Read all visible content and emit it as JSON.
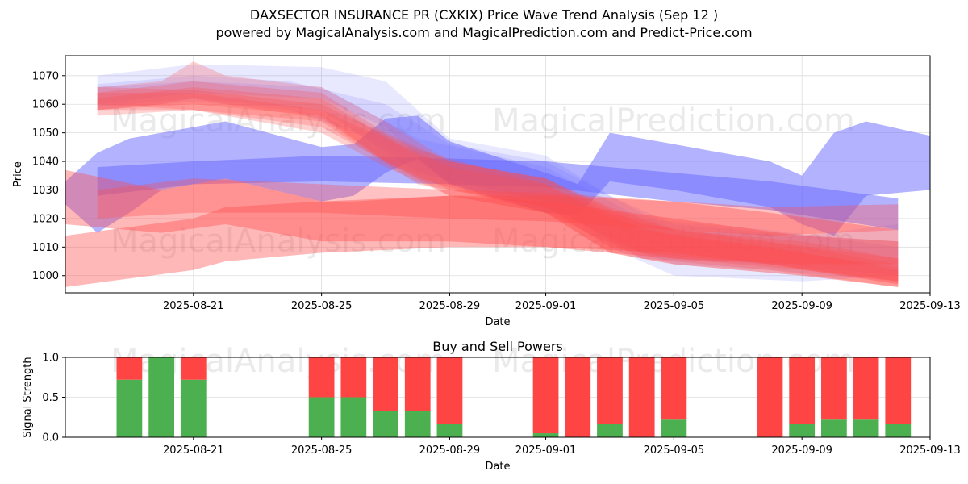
{
  "header": {
    "title_line1": "DAXSECTOR INSURANCE PR (CXKIX) Price Wave Trend Analysis (Sep 12 )",
    "title_line2": "powered by MagicalAnalysis.com and MagicalPrediction.com and Predict-Price.com"
  },
  "watermarks": [
    "MagicalAnalysis.com",
    "MagicalPrediction.com"
  ],
  "colors": {
    "blue_band": "#6666ff",
    "red_band": "#ff4d4d",
    "buy": "#4caf50",
    "sell": "#ff4444",
    "grid": "#dddddd"
  },
  "chart_data": [
    {
      "type": "area",
      "title": "",
      "xlabel": "Date",
      "ylabel": "Price",
      "ylim": [
        994,
        1077
      ],
      "x_range": [
        "2025-08-17",
        "2025-09-13"
      ],
      "x_ticks": [
        "2025-08-21",
        "2025-08-25",
        "2025-08-29",
        "2025-09-01",
        "2025-09-05",
        "2025-09-09",
        "2025-09-13"
      ],
      "y_ticks": [
        1000,
        1010,
        1020,
        1030,
        1040,
        1050,
        1060,
        1070
      ],
      "grid": true,
      "bands": [
        {
          "color": "blue",
          "opacity": 0.5,
          "points": [
            [
              "2025-08-17",
              1033,
              1025
            ],
            [
              "2025-08-18",
              1043,
              1015
            ],
            [
              "2025-08-19",
              1048,
              1022
            ],
            [
              "2025-08-20",
              1050,
              1030
            ],
            [
              "2025-08-22",
              1054,
              1034
            ],
            [
              "2025-08-25",
              1045,
              1026
            ],
            [
              "2025-08-26",
              1046,
              1028
            ],
            [
              "2025-08-27",
              1055,
              1036
            ],
            [
              "2025-08-28",
              1056,
              1041
            ],
            [
              "2025-08-29",
              1047,
              1032
            ],
            [
              "2025-09-01",
              1036,
              1022
            ],
            [
              "2025-09-02",
              1032,
              1021
            ],
            [
              "2025-09-03",
              1050,
              1033
            ],
            [
              "2025-09-05",
              1046,
              1030
            ],
            [
              "2025-09-08",
              1040,
              1024
            ],
            [
              "2025-09-09",
              1035,
              1018
            ],
            [
              "2025-09-10",
              1050,
              1014
            ],
            [
              "2025-09-11",
              1054,
              1028
            ],
            [
              "2025-09-13",
              1049,
              1030
            ]
          ]
        },
        {
          "color": "blue",
          "opacity": 0.5,
          "points": [
            [
              "2025-08-18",
              1038,
              1028
            ],
            [
              "2025-08-21",
              1040,
              1032
            ],
            [
              "2025-08-25",
              1042,
              1033
            ],
            [
              "2025-08-29",
              1041,
              1032
            ],
            [
              "2025-09-01",
              1040,
              1031
            ],
            [
              "2025-09-05",
              1036,
              1026
            ],
            [
              "2025-09-08",
              1033,
              1023
            ],
            [
              "2025-09-12",
              1027,
              1016
            ]
          ]
        },
        {
          "color": "blue",
          "opacity": 0.15,
          "points": [
            [
              "2025-08-18",
              1070,
              1060
            ],
            [
              "2025-08-21",
              1074,
              1064
            ],
            [
              "2025-08-25",
              1073,
              1062
            ],
            [
              "2025-08-27",
              1068,
              1052
            ],
            [
              "2025-08-29",
              1048,
              1032
            ],
            [
              "2025-09-01",
              1042,
              1024
            ],
            [
              "2025-09-03",
              1028,
              1010
            ],
            [
              "2025-09-05",
              1016,
              1000
            ],
            [
              "2025-09-09",
              1014,
              998
            ],
            [
              "2025-09-12",
              1018,
              1000
            ]
          ]
        },
        {
          "color": "blue",
          "opacity": 0.15,
          "points": [
            [
              "2025-08-18",
              1067,
              1058
            ],
            [
              "2025-08-21",
              1070,
              1061
            ],
            [
              "2025-08-24",
              1068,
              1058
            ],
            [
              "2025-08-27",
              1060,
              1046
            ],
            [
              "2025-08-29",
              1046,
              1032
            ],
            [
              "2025-09-01",
              1040,
              1026
            ],
            [
              "2025-09-03",
              1028,
              1012
            ],
            [
              "2025-09-05",
              1018,
              1004
            ],
            [
              "2025-09-08",
              1015,
              1002
            ],
            [
              "2025-09-12",
              1012,
              998
            ]
          ]
        },
        {
          "color": "blue",
          "opacity": 0.15,
          "points": [
            [
              "2025-08-18",
              1066,
              1059
            ],
            [
              "2025-08-21",
              1068,
              1062
            ],
            [
              "2025-08-25",
              1066,
              1058
            ],
            [
              "2025-08-28",
              1048,
              1036
            ],
            [
              "2025-09-01",
              1038,
              1026
            ],
            [
              "2025-09-04",
              1020,
              1006
            ],
            [
              "2025-09-08",
              1016,
              1004
            ],
            [
              "2025-09-12",
              1010,
              1000
            ]
          ]
        },
        {
          "color": "red",
          "opacity": 0.4,
          "points": [
            [
              "2025-08-17",
              1014,
              996
            ],
            [
              "2025-08-21",
              1020,
              1002
            ],
            [
              "2025-08-22",
              1024,
              1005
            ],
            [
              "2025-08-25",
              1026,
              1008
            ],
            [
              "2025-08-29",
              1028,
              1010
            ],
            [
              "2025-09-01",
              1028,
              1010
            ],
            [
              "2025-09-05",
              1026,
              1008
            ],
            [
              "2025-09-08",
              1022,
              1004
            ],
            [
              "2025-09-12",
              1016,
              997
            ]
          ]
        },
        {
          "color": "red",
          "opacity": 0.4,
          "points": [
            [
              "2025-08-17",
              1037,
              1018
            ],
            [
              "2025-08-20",
              1030,
              1015
            ],
            [
              "2025-08-22",
              1034,
              1018
            ],
            [
              "2025-08-25",
              1026,
              1012
            ],
            [
              "2025-08-26",
              1026,
              1012
            ],
            [
              "2025-08-29",
              1028,
              1012
            ],
            [
              "2025-09-01",
              1026,
              1010
            ],
            [
              "2025-09-05",
              1020,
              1006
            ],
            [
              "2025-09-09",
              1014,
              1004
            ],
            [
              "2025-09-12",
              1012,
              1004
            ]
          ]
        },
        {
          "color": "red",
          "opacity": 0.35,
          "points": [
            [
              "2025-08-18",
              1030,
              1020
            ],
            [
              "2025-08-21",
              1034,
              1022
            ],
            [
              "2025-08-25",
              1032,
              1022
            ],
            [
              "2025-08-29",
              1030,
              1020
            ],
            [
              "2025-09-01",
              1029,
              1019
            ],
            [
              "2025-09-05",
              1026,
              1016
            ],
            [
              "2025-09-08",
              1024,
              1014
            ],
            [
              "2025-09-12",
              1025,
              1016
            ]
          ]
        },
        {
          "color": "red",
          "opacity": 0.25,
          "points": [
            [
              "2025-08-18",
              1066,
              1058
            ],
            [
              "2025-08-20",
              1068,
              1060
            ],
            [
              "2025-08-21",
              1075,
              1062
            ],
            [
              "2025-08-22",
              1070,
              1060
            ],
            [
              "2025-08-25",
              1066,
              1055
            ],
            [
              "2025-08-27",
              1054,
              1040
            ],
            [
              "2025-08-29",
              1040,
              1028
            ],
            [
              "2025-09-01",
              1034,
              1022
            ],
            [
              "2025-09-03",
              1022,
              1008
            ],
            [
              "2025-09-05",
              1016,
              1004
            ],
            [
              "2025-09-09",
              1012,
              1000
            ],
            [
              "2025-09-12",
              1006,
              996
            ]
          ]
        },
        {
          "color": "red",
          "opacity": 0.25,
          "points": [
            [
              "2025-08-18",
              1064,
              1058
            ],
            [
              "2025-08-21",
              1068,
              1060
            ],
            [
              "2025-08-25",
              1064,
              1056
            ],
            [
              "2025-08-27",
              1050,
              1040
            ],
            [
              "2025-08-29",
              1040,
              1030
            ],
            [
              "2025-09-01",
              1034,
              1024
            ],
            [
              "2025-09-03",
              1024,
              1010
            ],
            [
              "2025-09-05",
              1016,
              1006
            ],
            [
              "2025-09-09",
              1010,
              1002
            ],
            [
              "2025-09-12",
              1004,
              998
            ]
          ]
        },
        {
          "color": "red",
          "opacity": 0.25,
          "points": [
            [
              "2025-08-18",
              1062,
              1056
            ],
            [
              "2025-08-21",
              1066,
              1058
            ],
            [
              "2025-08-25",
              1062,
              1054
            ],
            [
              "2025-08-28",
              1042,
              1032
            ],
            [
              "2025-09-01",
              1034,
              1024
            ],
            [
              "2025-09-04",
              1018,
              1008
            ],
            [
              "2025-09-08",
              1012,
              1004
            ],
            [
              "2025-09-12",
              1006,
              998
            ]
          ]
        },
        {
          "color": "red",
          "opacity": 0.25,
          "points": [
            [
              "2025-08-18",
              1066,
              1060
            ],
            [
              "2025-08-21",
              1065,
              1058
            ],
            [
              "2025-08-25",
              1060,
              1052
            ],
            [
              "2025-08-28",
              1044,
              1034
            ],
            [
              "2025-09-01",
              1032,
              1022
            ],
            [
              "2025-09-03",
              1020,
              1008
            ],
            [
              "2025-09-05",
              1014,
              1004
            ],
            [
              "2025-09-09",
              1008,
              1000
            ],
            [
              "2025-09-12",
              1003,
              996
            ]
          ]
        },
        {
          "color": "red",
          "opacity": 0.25,
          "points": [
            [
              "2025-08-18",
              1064,
              1058
            ],
            [
              "2025-08-21",
              1064,
              1058
            ],
            [
              "2025-08-25",
              1058,
              1050
            ],
            [
              "2025-08-27",
              1048,
              1038
            ],
            [
              "2025-08-29",
              1038,
              1028
            ],
            [
              "2025-09-01",
              1032,
              1022
            ],
            [
              "2025-09-04",
              1016,
              1006
            ],
            [
              "2025-09-08",
              1010,
              1002
            ],
            [
              "2025-09-12",
              1002,
              996
            ]
          ]
        }
      ]
    },
    {
      "type": "bar",
      "title": "Buy and Sell Powers",
      "xlabel": "Date",
      "ylabel": "Signal Strength",
      "ylim": [
        0,
        1.0
      ],
      "x_range": [
        "2025-08-17",
        "2025-09-13"
      ],
      "x_ticks": [
        "2025-08-21",
        "2025-08-25",
        "2025-08-29",
        "2025-09-01",
        "2025-09-05",
        "2025-09-09",
        "2025-09-13"
      ],
      "y_ticks": [
        "0.0",
        "0.5",
        "1.0"
      ],
      "grid": true,
      "series": [
        {
          "name": "Buy",
          "color": "green"
        },
        {
          "name": "Sell",
          "color": "red"
        }
      ],
      "dates": [
        "2025-08-19",
        "2025-08-20",
        "2025-08-21",
        "2025-08-25",
        "2025-08-26",
        "2025-08-27",
        "2025-08-28",
        "2025-08-29",
        "2025-09-01",
        "2025-09-02",
        "2025-09-03",
        "2025-09-04",
        "2025-09-05",
        "2025-09-08",
        "2025-09-09",
        "2025-09-10",
        "2025-09-11",
        "2025-09-12"
      ],
      "buy": [
        0.72,
        1.0,
        0.72,
        0.5,
        0.5,
        0.33,
        0.33,
        0.17,
        0.05,
        0.0,
        0.17,
        0.0,
        0.22,
        0.0,
        0.17,
        0.22,
        0.22,
        0.17
      ]
    }
  ]
}
